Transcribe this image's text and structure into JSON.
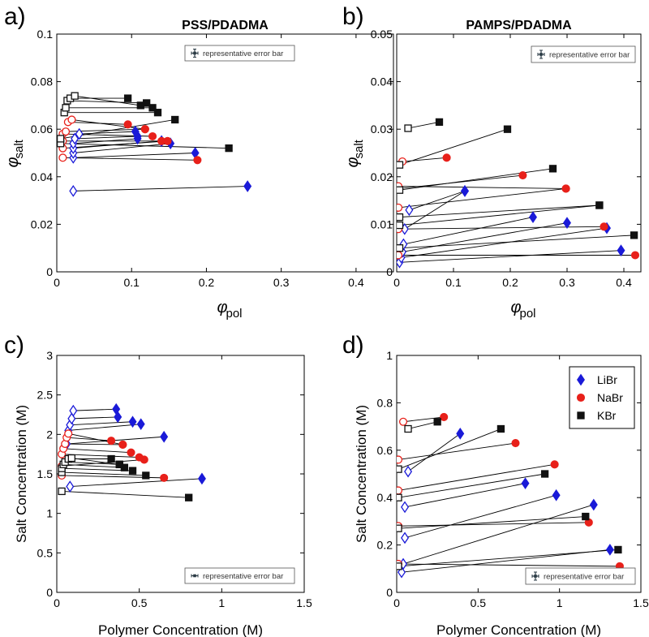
{
  "colors": {
    "LiBr": "#1a1ad8",
    "NaBr": "#e8201a",
    "KBr": "#111111"
  },
  "chart_data": [
    {
      "panel_label": "a)",
      "type": "scatter",
      "title": "PSS/PDADMA",
      "xlabel_symbol": "φ",
      "xlabel_sub": "pol",
      "ylabel_symbol": "φ",
      "ylabel_sub": "salt",
      "xlim": [
        0,
        0.45
      ],
      "ylim": [
        0,
        0.1
      ],
      "xticks": [
        "0",
        "0.1",
        "0.2",
        "0.3",
        "0.4"
      ],
      "yticks": [
        "0",
        "0.02",
        "0.04",
        "0.06",
        "0.08",
        "0.1"
      ],
      "error_bar_label": "representative error bar",
      "tie_lines": [
        {
          "salt": "LiBr",
          "open": [
            0.022,
            0.034
          ],
          "filled": [
            0.255,
            0.036
          ]
        },
        {
          "salt": "LiBr",
          "open": [
            0.022,
            0.048
          ],
          "filled": [
            0.185,
            0.05
          ]
        },
        {
          "salt": "LiBr",
          "open": [
            0.022,
            0.05
          ],
          "filled": [
            0.152,
            0.054
          ]
        },
        {
          "salt": "LiBr",
          "open": [
            0.022,
            0.052
          ],
          "filled": [
            0.14,
            0.055
          ]
        },
        {
          "salt": "LiBr",
          "open": [
            0.022,
            0.054
          ],
          "filled": [
            0.108,
            0.056
          ]
        },
        {
          "salt": "LiBr",
          "open": [
            0.024,
            0.056
          ],
          "filled": [
            0.108,
            0.057
          ]
        },
        {
          "salt": "LiBr",
          "open": [
            0.03,
            0.058
          ],
          "filled": [
            0.105,
            0.059
          ]
        },
        {
          "salt": "NaBr",
          "open": [
            0.008,
            0.048
          ],
          "filled": [
            0.188,
            0.047
          ]
        },
        {
          "salt": "NaBr",
          "open": [
            0.008,
            0.052
          ],
          "filled": [
            0.148,
            0.055
          ]
        },
        {
          "salt": "NaBr",
          "open": [
            0.008,
            0.055
          ],
          "filled": [
            0.14,
            0.055
          ]
        },
        {
          "salt": "NaBr",
          "open": [
            0.008,
            0.058
          ],
          "filled": [
            0.128,
            0.057
          ]
        },
        {
          "salt": "NaBr",
          "open": [
            0.012,
            0.059
          ],
          "filled": [
            0.118,
            0.06
          ]
        },
        {
          "salt": "NaBr",
          "open": [
            0.015,
            0.063
          ],
          "filled": [
            0.095,
            0.062
          ]
        },
        {
          "salt": "NaBr",
          "open": [
            0.02,
            0.064
          ],
          "filled": [
            0.118,
            0.06
          ]
        },
        {
          "salt": "KBr",
          "open": [
            0.005,
            0.054
          ],
          "filled": [
            0.23,
            0.052
          ]
        },
        {
          "salt": "KBr",
          "open": [
            0.005,
            0.056
          ],
          "filled": [
            0.158,
            0.064
          ]
        },
        {
          "salt": "KBr",
          "open": [
            0.01,
            0.067
          ],
          "filled": [
            0.135,
            0.067
          ]
        },
        {
          "salt": "KBr",
          "open": [
            0.012,
            0.069
          ],
          "filled": [
            0.128,
            0.069
          ]
        },
        {
          "salt": "KBr",
          "open": [
            0.014,
            0.072
          ],
          "filled": [
            0.12,
            0.071
          ]
        },
        {
          "salt": "KBr",
          "open": [
            0.018,
            0.073
          ],
          "filled": [
            0.095,
            0.073
          ]
        },
        {
          "salt": "KBr",
          "open": [
            0.024,
            0.074
          ],
          "filled": [
            0.112,
            0.07
          ]
        }
      ]
    },
    {
      "panel_label": "b)",
      "type": "scatter",
      "title": "PAMPS/PDADMA",
      "xlabel_symbol": "φ",
      "xlabel_sub": "pol",
      "ylabel_symbol": "φ",
      "ylabel_sub": "salt",
      "xlim": [
        0,
        0.43
      ],
      "ylim": [
        0,
        0.05
      ],
      "xticks": [
        "0",
        "0.1",
        "0.2",
        "0.3",
        "0.4"
      ],
      "yticks": [
        "0",
        "0.01",
        "0.02",
        "0.03",
        "0.04",
        "0.05"
      ],
      "error_bar_label": "representative error bar",
      "tie_lines": [
        {
          "salt": "LiBr",
          "open": [
            0.005,
            0.002
          ],
          "filled": [
            0.395,
            0.0045
          ]
        },
        {
          "salt": "LiBr",
          "open": [
            0.008,
            0.003
          ],
          "filled": [
            0.37,
            0.0092
          ]
        },
        {
          "salt": "LiBr",
          "open": [
            0.01,
            0.0042
          ],
          "filled": [
            0.3,
            0.0103
          ]
        },
        {
          "salt": "LiBr",
          "open": [
            0.012,
            0.0058
          ],
          "filled": [
            0.24,
            0.0115
          ]
        },
        {
          "salt": "LiBr",
          "open": [
            0.014,
            0.009
          ],
          "filled": [
            0.12,
            0.017
          ]
        },
        {
          "salt": "LiBr",
          "open": [
            0.022,
            0.013
          ],
          "filled": [
            0.12,
            0.017
          ]
        },
        {
          "salt": "NaBr",
          "open": [
            0.003,
            0.0035
          ],
          "filled": [
            0.42,
            0.0035
          ]
        },
        {
          "salt": "NaBr",
          "open": [
            0.003,
            0.009
          ],
          "filled": [
            0.365,
            0.0095
          ]
        },
        {
          "salt": "NaBr",
          "open": [
            0.003,
            0.0135
          ],
          "filled": [
            0.298,
            0.0175
          ]
        },
        {
          "salt": "NaBr",
          "open": [
            0.003,
            0.0175
          ],
          "filled": [
            0.222,
            0.0203
          ]
        },
        {
          "salt": "NaBr",
          "open": [
            0.003,
            0.018
          ],
          "filled": [
            0.298,
            0.0175
          ]
        },
        {
          "salt": "NaBr",
          "open": [
            0.01,
            0.0232
          ],
          "filled": [
            0.088,
            0.024
          ]
        },
        {
          "salt": "KBr",
          "open": [
            0.005,
            0.005
          ],
          "filled": [
            0.418,
            0.0077
          ]
        },
        {
          "salt": "KBr",
          "open": [
            0.005,
            0.0098
          ],
          "filled": [
            0.357,
            0.014
          ]
        },
        {
          "salt": "KBr",
          "open": [
            0.005,
            0.0115
          ],
          "filled": [
            0.357,
            0.014
          ]
        },
        {
          "salt": "KBr",
          "open": [
            0.005,
            0.0172
          ],
          "filled": [
            0.275,
            0.0217
          ]
        },
        {
          "salt": "KBr",
          "open": [
            0.005,
            0.0225
          ],
          "filled": [
            0.195,
            0.03
          ]
        },
        {
          "salt": "KBr",
          "open": [
            0.02,
            0.0302
          ],
          "filled": [
            0.075,
            0.0315
          ]
        }
      ]
    },
    {
      "panel_label": "c)",
      "type": "scatter",
      "title": "",
      "xlabel": "Polymer Concentration (M)",
      "ylabel": "Salt Concentration (M)",
      "xlim": [
        0,
        1.5
      ],
      "ylim": [
        0,
        3
      ],
      "xticks": [
        "0",
        "0.5",
        "1",
        "1.5"
      ],
      "yticks": [
        "0",
        "0.5",
        "1",
        "1.5",
        "2",
        "2.5",
        "3"
      ],
      "error_bar_label": "representative error bar",
      "tie_lines": [
        {
          "salt": "LiBr",
          "open": [
            0.08,
            1.34
          ],
          "filled": [
            0.88,
            1.44
          ]
        },
        {
          "salt": "LiBr",
          "open": [
            0.06,
            1.88
          ],
          "filled": [
            0.65,
            1.97
          ]
        },
        {
          "salt": "LiBr",
          "open": [
            0.07,
            2.05
          ],
          "filled": [
            0.51,
            2.13
          ]
        },
        {
          "salt": "LiBr",
          "open": [
            0.08,
            2.12
          ],
          "filled": [
            0.46,
            2.16
          ]
        },
        {
          "salt": "LiBr",
          "open": [
            0.09,
            2.2
          ],
          "filled": [
            0.37,
            2.22
          ]
        },
        {
          "salt": "LiBr",
          "open": [
            0.1,
            2.3
          ],
          "filled": [
            0.36,
            2.32
          ]
        },
        {
          "salt": "NaBr",
          "open": [
            0.03,
            1.48
          ],
          "filled": [
            0.65,
            1.45
          ]
        },
        {
          "salt": "NaBr",
          "open": [
            0.03,
            1.6
          ],
          "filled": [
            0.53,
            1.68
          ]
        },
        {
          "salt": "NaBr",
          "open": [
            0.03,
            1.75
          ],
          "filled": [
            0.5,
            1.71
          ]
        },
        {
          "salt": "NaBr",
          "open": [
            0.04,
            1.82
          ],
          "filled": [
            0.45,
            1.77
          ]
        },
        {
          "salt": "NaBr",
          "open": [
            0.05,
            1.88
          ],
          "filled": [
            0.4,
            1.87
          ]
        },
        {
          "salt": "NaBr",
          "open": [
            0.06,
            1.96
          ],
          "filled": [
            0.33,
            1.92
          ]
        },
        {
          "salt": "NaBr",
          "open": [
            0.07,
            2.01
          ],
          "filled": [
            0.4,
            1.87
          ]
        },
        {
          "salt": "KBr",
          "open": [
            0.03,
            1.28
          ],
          "filled": [
            0.8,
            1.2
          ]
        },
        {
          "salt": "KBr",
          "open": [
            0.03,
            1.52
          ],
          "filled": [
            0.54,
            1.48
          ]
        },
        {
          "salt": "KBr",
          "open": [
            0.03,
            1.57
          ],
          "filled": [
            0.46,
            1.54
          ]
        },
        {
          "salt": "KBr",
          "open": [
            0.04,
            1.62
          ],
          "filled": [
            0.41,
            1.58
          ]
        },
        {
          "salt": "KBr",
          "open": [
            0.05,
            1.65
          ],
          "filled": [
            0.38,
            1.62
          ]
        },
        {
          "salt": "KBr",
          "open": [
            0.07,
            1.69
          ],
          "filled": [
            0.33,
            1.69
          ]
        },
        {
          "salt": "KBr",
          "open": [
            0.09,
            1.7
          ],
          "filled": [
            0.38,
            1.62
          ]
        }
      ]
    },
    {
      "panel_label": "d)",
      "type": "scatter",
      "title": "",
      "xlabel": "Polymer Concentration (M)",
      "ylabel": "Salt Concentration (M)",
      "xlim": [
        0,
        1.5
      ],
      "ylim": [
        0,
        1
      ],
      "xticks": [
        "0",
        "0.5",
        "1",
        "1.5"
      ],
      "yticks": [
        "0",
        "0.2",
        "0.4",
        "0.6",
        "0.8",
        "1"
      ],
      "error_bar_label": "representative error bar",
      "legend": {
        "position": "top-right",
        "entries": [
          "LiBr",
          "NaBr",
          "KBr"
        ]
      },
      "tie_lines": [
        {
          "salt": "LiBr",
          "open": [
            0.03,
            0.085
          ],
          "filled": [
            1.31,
            0.18
          ]
        },
        {
          "salt": "LiBr",
          "open": [
            0.04,
            0.12
          ],
          "filled": [
            1.21,
            0.37
          ]
        },
        {
          "salt": "LiBr",
          "open": [
            0.05,
            0.23
          ],
          "filled": [
            0.98,
            0.41
          ]
        },
        {
          "salt": "LiBr",
          "open": [
            0.05,
            0.36
          ],
          "filled": [
            0.79,
            0.46
          ]
        },
        {
          "salt": "LiBr",
          "open": [
            0.07,
            0.51
          ],
          "filled": [
            0.39,
            0.67
          ]
        },
        {
          "salt": "NaBr",
          "open": [
            0.01,
            0.12
          ],
          "filled": [
            1.37,
            0.11
          ]
        },
        {
          "salt": "NaBr",
          "open": [
            0.01,
            0.28
          ],
          "filled": [
            1.18,
            0.295
          ]
        },
        {
          "salt": "NaBr",
          "open": [
            0.01,
            0.43
          ],
          "filled": [
            0.97,
            0.54
          ]
        },
        {
          "salt": "NaBr",
          "open": [
            0.01,
            0.56
          ],
          "filled": [
            0.73,
            0.63
          ]
        },
        {
          "salt": "NaBr",
          "open": [
            0.04,
            0.72
          ],
          "filled": [
            0.29,
            0.74
          ]
        },
        {
          "salt": "KBr",
          "open": [
            0.01,
            0.11
          ],
          "filled": [
            1.36,
            0.18
          ]
        },
        {
          "salt": "KBr",
          "open": [
            0.01,
            0.27
          ],
          "filled": [
            1.16,
            0.32
          ]
        },
        {
          "salt": "KBr",
          "open": [
            0.01,
            0.4
          ],
          "filled": [
            0.91,
            0.5
          ]
        },
        {
          "salt": "KBr",
          "open": [
            0.01,
            0.52
          ],
          "filled": [
            0.64,
            0.69
          ]
        },
        {
          "salt": "KBr",
          "open": [
            0.07,
            0.69
          ],
          "filled": [
            0.25,
            0.72
          ]
        }
      ]
    }
  ]
}
